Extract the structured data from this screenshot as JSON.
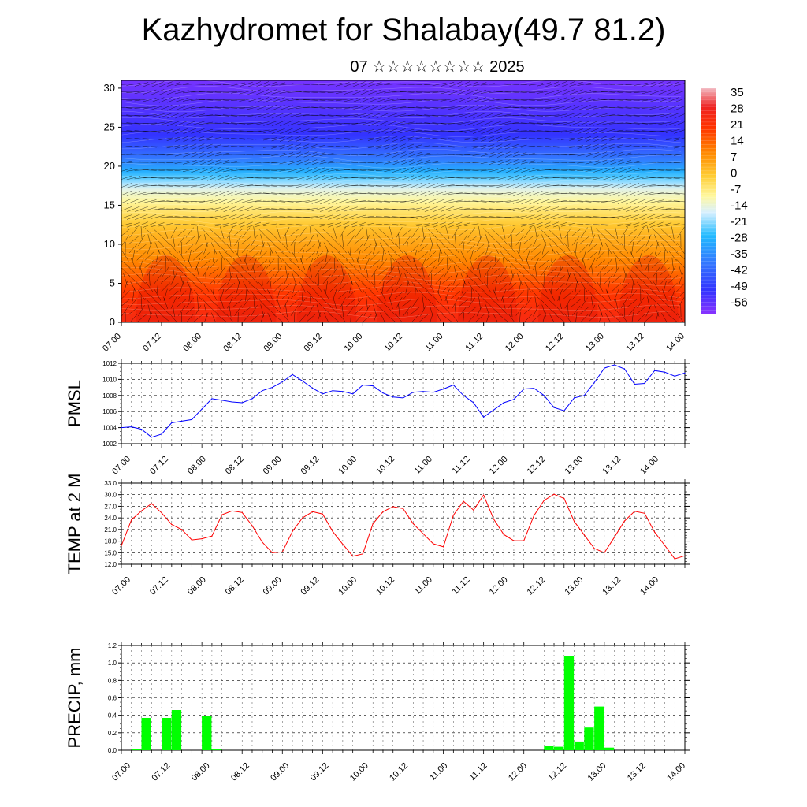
{
  "header": {
    "title": "Kazhydromet for Shalabay(49.7 81.2)",
    "subtitle": "07 ☆☆☆☆☆☆☆☆ 2025"
  },
  "time_ticks": [
    "07.00",
    "07.12",
    "08.00",
    "08.12",
    "09.00",
    "09.12",
    "10.00",
    "10.12",
    "11.00",
    "11.12",
    "12.00",
    "12.12",
    "13.00",
    "13.12",
    "14.00"
  ],
  "chart_data": [
    {
      "type": "heatmap",
      "name": "cross-section",
      "title": "",
      "xlabel": "",
      "ylabel": "",
      "x_ticks": [
        "07.00",
        "07.12",
        "08.00",
        "08.12",
        "09.00",
        "09.12",
        "10.00",
        "10.12",
        "11.00",
        "11.12",
        "12.00",
        "12.12",
        "13.00",
        "13.12",
        "14.00"
      ],
      "y_ticks": [
        0,
        5,
        10,
        15,
        20,
        25,
        30
      ],
      "ylim": [
        0,
        31
      ],
      "colorbar": {
        "labels": [
          "35",
          "28",
          "21",
          "14",
          "7",
          "0",
          "-7",
          "-14",
          "-21",
          "-28",
          "-35",
          "-42",
          "-49",
          "-56"
        ],
        "stops": [
          {
            "v": 38,
            "color": "#f2b8c0"
          },
          {
            "v": 30,
            "color": "#ee2222"
          },
          {
            "v": 21,
            "color": "#ff3300"
          },
          {
            "v": 10,
            "color": "#ff8800"
          },
          {
            "v": 0,
            "color": "#ffcc33"
          },
          {
            "v": -9,
            "color": "#fff8a0"
          },
          {
            "v": -16,
            "color": "#d8f0ff"
          },
          {
            "v": -26,
            "color": "#22bbff"
          },
          {
            "v": -38,
            "color": "#3377ff"
          },
          {
            "v": -50,
            "color": "#3333ff"
          },
          {
            "v": -60,
            "color": "#8833ff"
          }
        ]
      },
      "temperature_profile": [
        {
          "h": 0,
          "t": 26
        },
        {
          "h": 4,
          "t": 20
        },
        {
          "h": 8,
          "t": 10
        },
        {
          "h": 12,
          "t": 2
        },
        {
          "h": 15,
          "t": -7
        },
        {
          "h": 17,
          "t": -14
        },
        {
          "h": 19,
          "t": -26
        },
        {
          "h": 21,
          "t": -38
        },
        {
          "h": 24,
          "t": -50
        },
        {
          "h": 31,
          "t": -58
        }
      ],
      "vectors": "wind-barbs"
    },
    {
      "type": "line",
      "name": "pmsl",
      "ylabel": "PMSL",
      "ylim": [
        1002,
        1012
      ],
      "y_ticks": [
        "1002",
        "1004",
        "1006",
        "1008",
        "1010",
        "1012"
      ],
      "x": [
        "07.00",
        "07.03",
        "07.06",
        "07.09",
        "07.12",
        "07.15",
        "07.18",
        "07.21",
        "08.00",
        "08.03",
        "08.06",
        "08.09",
        "08.12",
        "08.15",
        "08.18",
        "08.21",
        "09.00",
        "09.03",
        "09.06",
        "09.09",
        "09.12",
        "09.15",
        "09.18",
        "09.21",
        "10.00",
        "10.03",
        "10.06",
        "10.09",
        "10.12",
        "10.15",
        "10.18",
        "10.21",
        "11.00",
        "11.03",
        "11.06",
        "11.09",
        "11.12",
        "11.15",
        "11.18",
        "11.21",
        "12.00",
        "12.03",
        "12.06",
        "12.09",
        "12.12",
        "12.15",
        "12.18",
        "12.21",
        "13.00",
        "13.03",
        "13.06",
        "13.09",
        "13.12",
        "13.15",
        "13.18",
        "13.21",
        "14.00"
      ],
      "series": [
        {
          "color": "#0000ff",
          "values": [
            1004,
            1004.1,
            1003.8,
            1002.8,
            1003.2,
            1004.6,
            1004.8,
            1005,
            1006.3,
            1007.6,
            1007.4,
            1007.2,
            1007.1,
            1007.6,
            1008.6,
            1009,
            1009.7,
            1010.6,
            1009.8,
            1008.9,
            1008.2,
            1008.6,
            1008.5,
            1008.2,
            1009.3,
            1009.2,
            1008.3,
            1007.8,
            1007.7,
            1008.4,
            1008.5,
            1008.4,
            1008.8,
            1009.3,
            1008,
            1007.1,
            1005.3,
            1006.2,
            1007.1,
            1007.5,
            1008.8,
            1008.9,
            1008,
            1006.5,
            1006.1,
            1007.7,
            1008,
            1009.6,
            1011.4,
            1011.8,
            1011.3,
            1009.4,
            1009.5,
            1011.1,
            1010.9,
            1010.4,
            1010.8
          ]
        }
      ]
    },
    {
      "type": "line",
      "name": "temp2m",
      "ylabel": "TEMP at 2 M",
      "ylim": [
        12,
        33
      ],
      "y_ticks": [
        "12.0",
        "15.0",
        "18.0",
        "21.0",
        "24.0",
        "27.0",
        "30.0",
        "33.0"
      ],
      "x": [
        "07.00",
        "07.03",
        "07.06",
        "07.09",
        "07.12",
        "07.15",
        "07.18",
        "07.21",
        "08.00",
        "08.03",
        "08.06",
        "08.09",
        "08.12",
        "08.15",
        "08.18",
        "08.21",
        "09.00",
        "09.03",
        "09.06",
        "09.09",
        "09.12",
        "09.15",
        "09.18",
        "09.21",
        "10.00",
        "10.03",
        "10.06",
        "10.09",
        "10.12",
        "10.15",
        "10.18",
        "10.21",
        "11.00",
        "11.03",
        "11.06",
        "11.09",
        "11.12",
        "11.15",
        "11.18",
        "11.21",
        "12.00",
        "12.03",
        "12.06",
        "12.09",
        "12.12",
        "12.15",
        "12.18",
        "12.21",
        "13.00",
        "13.03",
        "13.06",
        "13.09",
        "13.12",
        "13.15",
        "13.18",
        "13.21",
        "14.00"
      ],
      "series": [
        {
          "color": "#ff0000",
          "values": [
            16.8,
            23.5,
            25.8,
            27.7,
            25.3,
            22.3,
            21,
            18.3,
            18.6,
            19.3,
            24.8,
            25.8,
            25.4,
            22,
            17.7,
            15,
            15.2,
            20.5,
            24,
            25.6,
            25,
            20.5,
            17.2,
            14.1,
            14.7,
            22.5,
            25.6,
            26.9,
            26.4,
            22.5,
            19.9,
            17.3,
            16.5,
            24.7,
            28.3,
            26,
            29.9,
            23.7,
            19.7,
            18.1,
            18.1,
            24.6,
            28.5,
            30.1,
            29,
            23.1,
            19.6,
            16.1,
            15,
            19,
            23.2,
            25.7,
            25.2,
            20.3,
            16.9,
            13.4,
            14.2
          ]
        }
      ]
    },
    {
      "type": "bar",
      "name": "precip",
      "ylabel": "PRECIP, mm",
      "ylim": [
        0,
        1.2
      ],
      "y_ticks": [
        "0.0",
        "0.2",
        "0.4",
        "0.6",
        "0.8",
        "1.0",
        "1.2"
      ],
      "bar_color": "#00ff00",
      "x": [
        "07.00",
        "07.03",
        "07.06",
        "07.09",
        "07.12",
        "07.15",
        "07.18",
        "07.21",
        "08.00",
        "08.03",
        "08.06",
        "08.09",
        "08.12",
        "08.15",
        "08.18",
        "08.21",
        "09.00",
        "09.03",
        "09.06",
        "09.09",
        "09.12",
        "09.15",
        "09.18",
        "09.21",
        "10.00",
        "10.03",
        "10.06",
        "10.09",
        "10.12",
        "10.15",
        "10.18",
        "10.21",
        "11.00",
        "11.03",
        "11.06",
        "11.09",
        "11.12",
        "11.15",
        "11.18",
        "11.21",
        "12.00",
        "12.03",
        "12.06",
        "12.09",
        "12.12",
        "12.15",
        "12.18",
        "12.21",
        "13.00",
        "13.03",
        "13.06",
        "13.09",
        "13.12",
        "13.15",
        "13.18",
        "13.21"
      ],
      "values": [
        0,
        0.01,
        0.37,
        0,
        0.37,
        0.46,
        0,
        0,
        0.39,
        0.01,
        0,
        0,
        0,
        0,
        0,
        0,
        0,
        0,
        0,
        0,
        0,
        0,
        0,
        0,
        0,
        0,
        0,
        0,
        0,
        0,
        0,
        0,
        0,
        0,
        0,
        0,
        0,
        0,
        0,
        0,
        0,
        0,
        0.05,
        0.04,
        1.08,
        0.1,
        0.26,
        0.5,
        0.03,
        0,
        0,
        0,
        0,
        0,
        0,
        0
      ]
    }
  ]
}
